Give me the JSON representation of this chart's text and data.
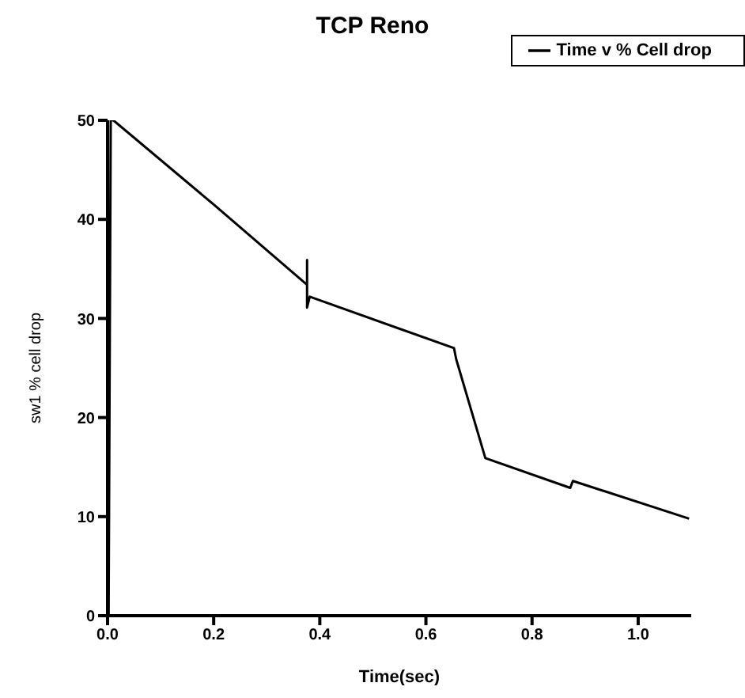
{
  "chart_data": {
    "type": "line",
    "title": "TCP Reno",
    "xlabel": "Time(sec)",
    "ylabel": "sw1 % cell drop",
    "series": [
      {
        "name": "Time v  % Cell drop",
        "color": "#000000",
        "x": [
          0.002,
          0.006,
          0.011,
          0.2,
          0.376,
          0.376,
          0.376,
          0.381,
          0.653,
          0.657,
          0.712,
          0.872,
          0.877,
          1.096
        ],
        "values": [
          0,
          50,
          50,
          41.5,
          33.4,
          35.9,
          31.1,
          32.2,
          27.0,
          25.9,
          15.9,
          12.9,
          13.6,
          9.8
        ]
      }
    ],
    "xlim": [
      0,
      1.1
    ],
    "xticks": [
      {
        "value": 0,
        "label": "0.0"
      },
      {
        "value": 0.2,
        "label": "0.2"
      },
      {
        "value": 0.4,
        "label": "0.4"
      },
      {
        "value": 0.6,
        "label": "0.6"
      },
      {
        "value": 0.8,
        "label": "0.8"
      },
      {
        "value": 1,
        "label": "1.0"
      }
    ],
    "ylim": [
      0,
      50
    ],
    "yticks": [
      0,
      10,
      20,
      30,
      40,
      50
    ],
    "grid": false,
    "legend": "top right",
    "marker": "none",
    "line_style": "solid"
  }
}
